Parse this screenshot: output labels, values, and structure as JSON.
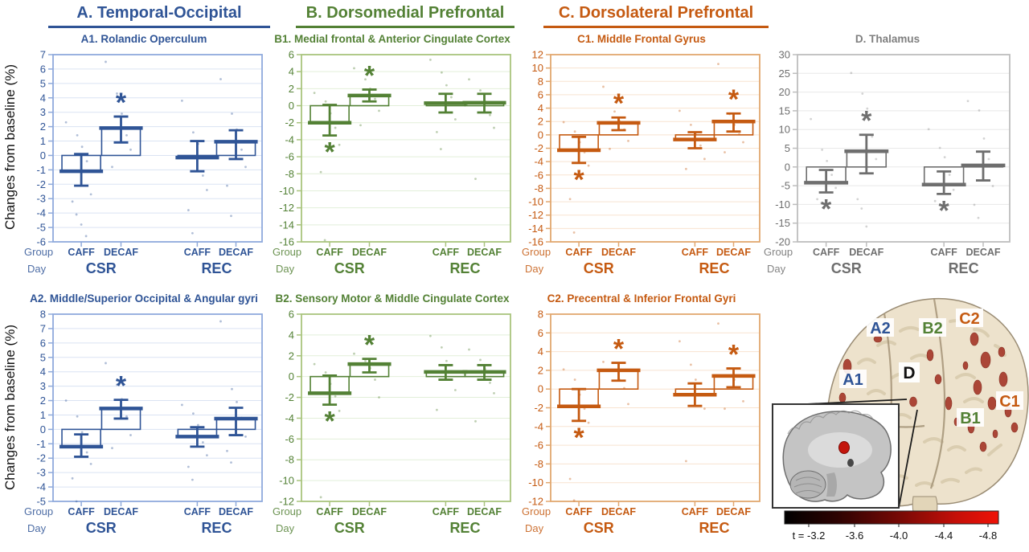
{
  "figure": {
    "ylabel": "Changes from baseline (%)",
    "colors": {
      "blue": "#2F5496",
      "green": "#538135",
      "orange": "#C55A11",
      "gray": "#6E6E6E"
    }
  },
  "headers": [
    {
      "label": "A. Temporal-Occipital",
      "color": "#2F5496"
    },
    {
      "label": "B. Dorsomedial Prefrontal",
      "color": "#538135"
    },
    {
      "label": "C. Dorsolateral Prefrontal",
      "color": "#C55A11"
    }
  ],
  "axis": {
    "group_label": "Group",
    "day_label": "Day",
    "groups": [
      "CAFF",
      "DECAF"
    ],
    "days": [
      "CSR",
      "REC"
    ]
  },
  "chart_data": [
    {
      "type": "bar",
      "id": "A1",
      "title": "A1. Rolandic Operculum",
      "color": "blue",
      "ylabel": "Changes from baseline (%)",
      "ylim": [
        -6,
        7
      ],
      "ystep": 1,
      "series": [
        {
          "day": "CSR",
          "group": "CAFF",
          "mean": -1.1,
          "ci": [
            -2.1,
            0.1
          ],
          "star": null,
          "points": [
            2.3,
            1.4,
            0.6,
            -0.4,
            -2.7,
            -3.2,
            -4.1,
            -4.8,
            -5.6
          ]
        },
        {
          "day": "CSR",
          "group": "DECAF",
          "mean": 1.9,
          "ci": [
            0.9,
            2.7
          ],
          "star": "above",
          "points": [
            6.5,
            4.3,
            2.9,
            1.4,
            0.4,
            -0.8
          ]
        },
        {
          "day": "REC",
          "group": "CAFF",
          "mean": -0.15,
          "ci": [
            -1.1,
            1.0
          ],
          "star": null,
          "points": [
            3.8,
            1.6,
            0.8,
            -1.4,
            -2.4,
            -3.8,
            -5.4
          ]
        },
        {
          "day": "REC",
          "group": "DECAF",
          "mean": 0.95,
          "ci": [
            -0.25,
            1.75
          ],
          "star": null,
          "points": [
            5.3,
            2.9,
            1.8,
            0.4,
            -0.8,
            -2.1,
            -4.2
          ]
        }
      ]
    },
    {
      "type": "bar",
      "id": "B1",
      "title": "B1. Medial frontal & Anterior Cingulate Cortex",
      "color": "green",
      "ylim": [
        -16,
        6
      ],
      "ystep": 2,
      "series": [
        {
          "day": "CSR",
          "group": "CAFF",
          "mean": -2.0,
          "ci": [
            -3.5,
            0.1
          ],
          "star": "below",
          "points": [
            1.5,
            0.5,
            -0.9,
            -2.6,
            -4.6,
            -7.8,
            -15.8
          ]
        },
        {
          "day": "CSR",
          "group": "DECAF",
          "mean": 1.2,
          "ci": [
            0.5,
            1.9
          ],
          "star": "above",
          "points": [
            4.4,
            3.1,
            2.0,
            0.8,
            -0.6,
            -2.3
          ]
        },
        {
          "day": "REC",
          "group": "CAFF",
          "mean": 0.3,
          "ci": [
            -0.8,
            1.4
          ],
          "star": null,
          "points": [
            5.4,
            3.9,
            2.4,
            1.0,
            -1.6,
            -3.1,
            -5.1
          ]
        },
        {
          "day": "REC",
          "group": "DECAF",
          "mean": 0.35,
          "ci": [
            -0.8,
            1.4
          ],
          "star": null,
          "points": [
            3.1,
            1.8,
            0.5,
            -1.1,
            -2.6,
            -8.6
          ]
        }
      ]
    },
    {
      "type": "bar",
      "id": "C1",
      "title": "C1. Middle Frontal Gyrus",
      "color": "orange",
      "ylim": [
        -16,
        12
      ],
      "ystep": 2,
      "series": [
        {
          "day": "CSR",
          "group": "CAFF",
          "mean": -2.3,
          "ci": [
            -4.2,
            -0.3
          ],
          "star": "below",
          "points": [
            1.9,
            0.5,
            -1.1,
            -2.6,
            -4.6,
            -9.6,
            -14.6
          ]
        },
        {
          "day": "CSR",
          "group": "DECAF",
          "mean": 1.8,
          "ci": [
            0.7,
            2.6
          ],
          "star": "above",
          "points": [
            7.2,
            3.5,
            2.1,
            0.8,
            -0.9,
            -2.1
          ]
        },
        {
          "day": "REC",
          "group": "CAFF",
          "mean": -0.7,
          "ci": [
            -2.0,
            0.4
          ],
          "star": null,
          "points": [
            3.6,
            1.5,
            0.1,
            -1.6,
            -3.6,
            -5.1
          ]
        },
        {
          "day": "REC",
          "group": "DECAF",
          "mean": 2.0,
          "ci": [
            0.5,
            3.2
          ],
          "star": "above",
          "points": [
            10.6,
            3.1,
            1.5,
            0.1,
            -1.1,
            -2.6
          ]
        }
      ]
    },
    {
      "type": "bar",
      "id": "D",
      "title": "D. Thalamus",
      "color": "gray",
      "ylim": [
        -20,
        30
      ],
      "ystep": 5,
      "series": [
        {
          "day": "CSR",
          "group": "CAFF",
          "mean": -4.2,
          "ci": [
            -6.8,
            -0.8
          ],
          "star": "below",
          "points": [
            12.8,
            4.6,
            1.6,
            -2.1,
            -5.6,
            -8.6,
            -9.6
          ]
        },
        {
          "day": "CSR",
          "group": "DECAF",
          "mean": 4.2,
          "ci": [
            -1.7,
            8.6
          ],
          "star": "above",
          "points": [
            25.1,
            19.6,
            15.6,
            8.1,
            2.1,
            -8.6,
            -11.1,
            -15.9
          ]
        },
        {
          "day": "REC",
          "group": "CAFF",
          "mean": -4.7,
          "ci": [
            -7.2,
            -1.2
          ],
          "star": "below",
          "points": [
            10.1,
            5.1,
            2.6,
            -2.1,
            -6.1,
            -9.1
          ]
        },
        {
          "day": "REC",
          "group": "DECAF",
          "mean": 0.4,
          "ci": [
            -3.6,
            4.1
          ],
          "star": null,
          "points": [
            17.6,
            15.1,
            7.6,
            2.1,
            -5.1,
            -10.1,
            -13.6
          ]
        }
      ]
    },
    {
      "type": "bar",
      "id": "A2",
      "title": "A2. Middle/Superior Occipital & Angular gyri",
      "color": "blue",
      "ylabel": "Changes from baseline (%)",
      "ylim": [
        -5,
        8
      ],
      "ystep": 1,
      "series": [
        {
          "day": "CSR",
          "group": "CAFF",
          "mean": -1.2,
          "ci": [
            -1.9,
            -0.35
          ],
          "star": null,
          "points": [
            2.0,
            0.9,
            -0.2,
            -1.6,
            -2.4,
            -3.4,
            -5.0
          ]
        },
        {
          "day": "CSR",
          "group": "DECAF",
          "mean": 1.45,
          "ci": [
            0.75,
            2.05
          ],
          "star": "above",
          "points": [
            4.6,
            3.1,
            2.1,
            0.9,
            -0.4,
            -1.3
          ]
        },
        {
          "day": "REC",
          "group": "CAFF",
          "mean": -0.5,
          "ci": [
            -1.2,
            0.15
          ],
          "star": null,
          "points": [
            1.7,
            1.1,
            0.3,
            -0.9,
            -1.8,
            -2.6,
            -3.5
          ]
        },
        {
          "day": "REC",
          "group": "DECAF",
          "mean": 0.75,
          "ci": [
            -0.4,
            1.5
          ],
          "star": null,
          "points": [
            7.5,
            2.8,
            1.9,
            0.8,
            -0.5,
            -1.5,
            -2.3
          ]
        }
      ]
    },
    {
      "type": "bar",
      "id": "B2",
      "title": "B2. Sensory Motor & Middle Cingulate Cortex",
      "color": "green",
      "ylim": [
        -12,
        6
      ],
      "ystep": 2,
      "series": [
        {
          "day": "CSR",
          "group": "CAFF",
          "mean": -1.6,
          "ci": [
            -2.7,
            0.1
          ],
          "star": "below",
          "points": [
            1.2,
            0.4,
            -0.7,
            -1.9,
            -3.3,
            -11.6
          ]
        },
        {
          "day": "CSR",
          "group": "DECAF",
          "mean": 1.2,
          "ci": [
            0.4,
            1.7
          ],
          "star": "above",
          "points": [
            2.2,
            1.5,
            0.8,
            -0.3,
            -2.0
          ]
        },
        {
          "day": "REC",
          "group": "CAFF",
          "mean": 0.45,
          "ci": [
            -0.3,
            1.1
          ],
          "star": null,
          "points": [
            3.9,
            2.8,
            1.5,
            0.5,
            -1.3,
            -3.2
          ]
        },
        {
          "day": "REC",
          "group": "DECAF",
          "mean": 0.45,
          "ci": [
            -0.3,
            1.1
          ],
          "star": null,
          "points": [
            2.6,
            1.6,
            0.7,
            -0.6,
            -1.6,
            -4.3
          ]
        }
      ]
    },
    {
      "type": "bar",
      "id": "C2",
      "title": "C2. Precentral & Inferior Frontal Gyri",
      "color": "orange",
      "ylim": [
        -12,
        8
      ],
      "ystep": 2,
      "series": [
        {
          "day": "CSR",
          "group": "CAFF",
          "mean": -1.85,
          "ci": [
            -3.4,
            0.0
          ],
          "star": "below",
          "points": [
            2.1,
            1.0,
            -0.6,
            -2.1,
            -3.6,
            -9.6,
            -11.9
          ]
        },
        {
          "day": "CSR",
          "group": "DECAF",
          "mean": 2.0,
          "ci": [
            0.9,
            2.8
          ],
          "star": "above",
          "points": [
            2.9,
            2.0,
            1.0,
            0.1,
            -1.6
          ]
        },
        {
          "day": "REC",
          "group": "CAFF",
          "mean": -0.6,
          "ci": [
            -1.8,
            0.6
          ],
          "star": null,
          "points": [
            5.1,
            2.6,
            1.0,
            -0.6,
            -2.1,
            -7.7
          ]
        },
        {
          "day": "REC",
          "group": "DECAF",
          "mean": 1.4,
          "ci": [
            0.2,
            2.2
          ],
          "star": "above",
          "points": [
            7.0,
            2.2,
            1.0,
            0.2,
            -1.3,
            -2.1
          ]
        }
      ]
    }
  ],
  "brain": {
    "labels": [
      {
        "text": "A2",
        "color": "#2F5496"
      },
      {
        "text": "B2",
        "color": "#538135"
      },
      {
        "text": "C2",
        "color": "#C55A11"
      },
      {
        "text": "A1",
        "color": "#2F5496"
      },
      {
        "text": "D",
        "color": "#111111"
      },
      {
        "text": "C1",
        "color": "#C55A11"
      },
      {
        "text": "B1",
        "color": "#538135"
      }
    ],
    "colorbar": {
      "ticks": [
        "t = -3.2",
        "-3.6",
        "-4.0",
        "-4.4",
        "-4.8"
      ],
      "left_color": "#000000",
      "right_color": "#ee1107"
    }
  }
}
